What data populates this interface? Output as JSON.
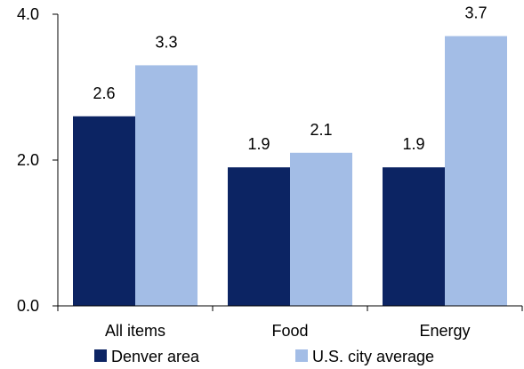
{
  "chart_data": {
    "type": "bar",
    "categories": [
      "All items",
      "Food",
      "Energy"
    ],
    "series": [
      {
        "name": "Denver area",
        "values": [
          2.6,
          1.9,
          1.9
        ],
        "color": "#0c2463"
      },
      {
        "name": "U.S. city average",
        "values": [
          3.3,
          2.1,
          3.7
        ],
        "color": "#a3bde6"
      }
    ],
    "yticks": [
      "0.0",
      "2.0",
      "4.0"
    ],
    "ylim": [
      0,
      4
    ],
    "data_labels": [
      [
        "2.6",
        "1.9",
        "1.9"
      ],
      [
        "3.3",
        "2.1",
        "3.7"
      ]
    ],
    "grid": false,
    "legend_position": "bottom"
  }
}
